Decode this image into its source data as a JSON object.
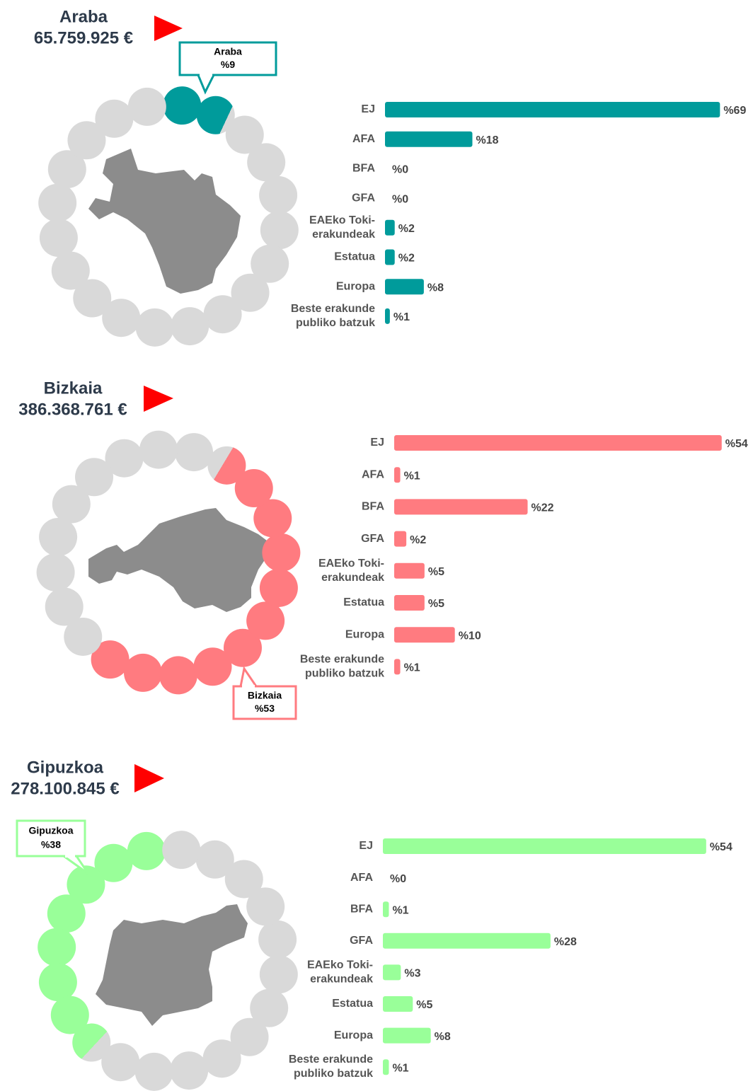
{
  "chart_data": [
    {
      "type": "bar",
      "title": "Araba",
      "subtitle": "65.759.925 €",
      "color": "#009b9b",
      "categories": [
        "EJ",
        "AFA",
        "BFA",
        "GFA",
        "EAEko Toki-erakundeak",
        "Estatua",
        "Europa",
        "Beste erakunde publiko batzuk"
      ],
      "values": [
        69,
        18,
        0,
        0,
        2,
        2,
        8,
        1
      ],
      "value_labels": [
        "%69",
        "%18",
        "%0",
        "%0",
        "%2",
        "%2",
        "%8",
        "%1"
      ],
      "share": {
        "name": "Araba",
        "value": 9,
        "value_label": "%9"
      }
    },
    {
      "type": "bar",
      "title": "Bizkaia",
      "subtitle": "386.368.761 €",
      "color": "#ff7b80",
      "categories": [
        "EJ",
        "AFA",
        "BFA",
        "GFA",
        "EAEko Toki-erakundeak",
        "Estatua",
        "Europa",
        "Beste erakunde publiko batzuk"
      ],
      "values": [
        54,
        1,
        22,
        2,
        5,
        5,
        10,
        1
      ],
      "value_labels": [
        "%54",
        "%1",
        "%22",
        "%2",
        "%5",
        "%5",
        "%10",
        "%1"
      ],
      "share": {
        "name": "Bizkaia",
        "value": 53,
        "value_label": "%53"
      }
    },
    {
      "type": "bar",
      "title": "Gipuzkoa",
      "subtitle": "278.100.845 €",
      "color": "#99ff99",
      "categories": [
        "EJ",
        "AFA",
        "BFA",
        "GFA",
        "EAEko Toki-erakundeak",
        "Estatua",
        "Europa",
        "Beste erakunde publiko batzuk"
      ],
      "values": [
        54,
        0,
        1,
        28,
        3,
        5,
        8,
        1
      ],
      "value_labels": [
        "%54",
        "%0",
        "%1",
        "%28",
        "%3",
        "%5",
        "%8",
        "%1"
      ],
      "share": {
        "name": "Gipuzkoa",
        "value": 38,
        "value_label": "%38"
      }
    }
  ]
}
